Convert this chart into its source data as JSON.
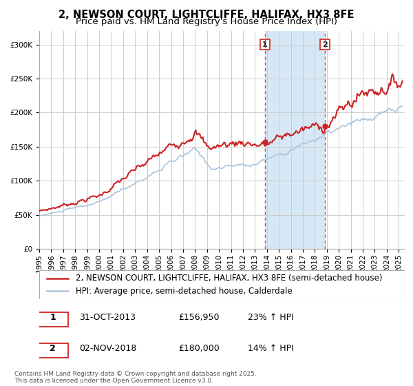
{
  "title_line1": "2, NEWSON COURT, LIGHTCLIFFE, HALIFAX, HX3 8FE",
  "title_line2": "Price paid vs. HM Land Registry's House Price Index (HPI)",
  "ylim": [
    0,
    320000
  ],
  "xlim_start": 1995.0,
  "xlim_end": 2025.5,
  "yticks": [
    0,
    50000,
    100000,
    150000,
    200000,
    250000,
    300000
  ],
  "ytick_labels": [
    "£0",
    "£50K",
    "£100K",
    "£150K",
    "£200K",
    "£250K",
    "£300K"
  ],
  "xticks": [
    1995,
    1996,
    1997,
    1998,
    1999,
    2000,
    2001,
    2002,
    2003,
    2004,
    2005,
    2006,
    2007,
    2008,
    2009,
    2010,
    2011,
    2012,
    2013,
    2014,
    2015,
    2016,
    2017,
    2018,
    2019,
    2020,
    2021,
    2022,
    2023,
    2024,
    2025
  ],
  "background_color": "#ffffff",
  "plot_bg_color": "#ffffff",
  "grid_color": "#cccccc",
  "hpi_line_color": "#aac4dd",
  "price_line_color": "#cc2222",
  "sale1_x": 2013.833,
  "sale1_y": 156950,
  "sale1_label": "1",
  "sale1_date": "31-OCT-2013",
  "sale1_price": "£156,950",
  "sale1_hpi": "23% ↑ HPI",
  "sale2_x": 2018.836,
  "sale2_y": 180000,
  "sale2_label": "2",
  "sale2_date": "02-NOV-2018",
  "sale2_price": "£180,000",
  "sale2_hpi": "14% ↑ HPI",
  "vline_color": "#dd4444",
  "shade_color": "#d6e8f5",
  "legend_label_price": "2, NEWSON COURT, LIGHTCLIFFE, HALIFAX, HX3 8FE (semi-detached house)",
  "legend_label_hpi": "HPI: Average price, semi-detached house, Calderdale",
  "footnote": "Contains HM Land Registry data © Crown copyright and database right 2025.\nThis data is licensed under the Open Government Licence v3.0.",
  "title_fontsize": 10.5,
  "subtitle_fontsize": 9.5,
  "tick_fontsize": 7.5,
  "legend_fontsize": 8.5
}
